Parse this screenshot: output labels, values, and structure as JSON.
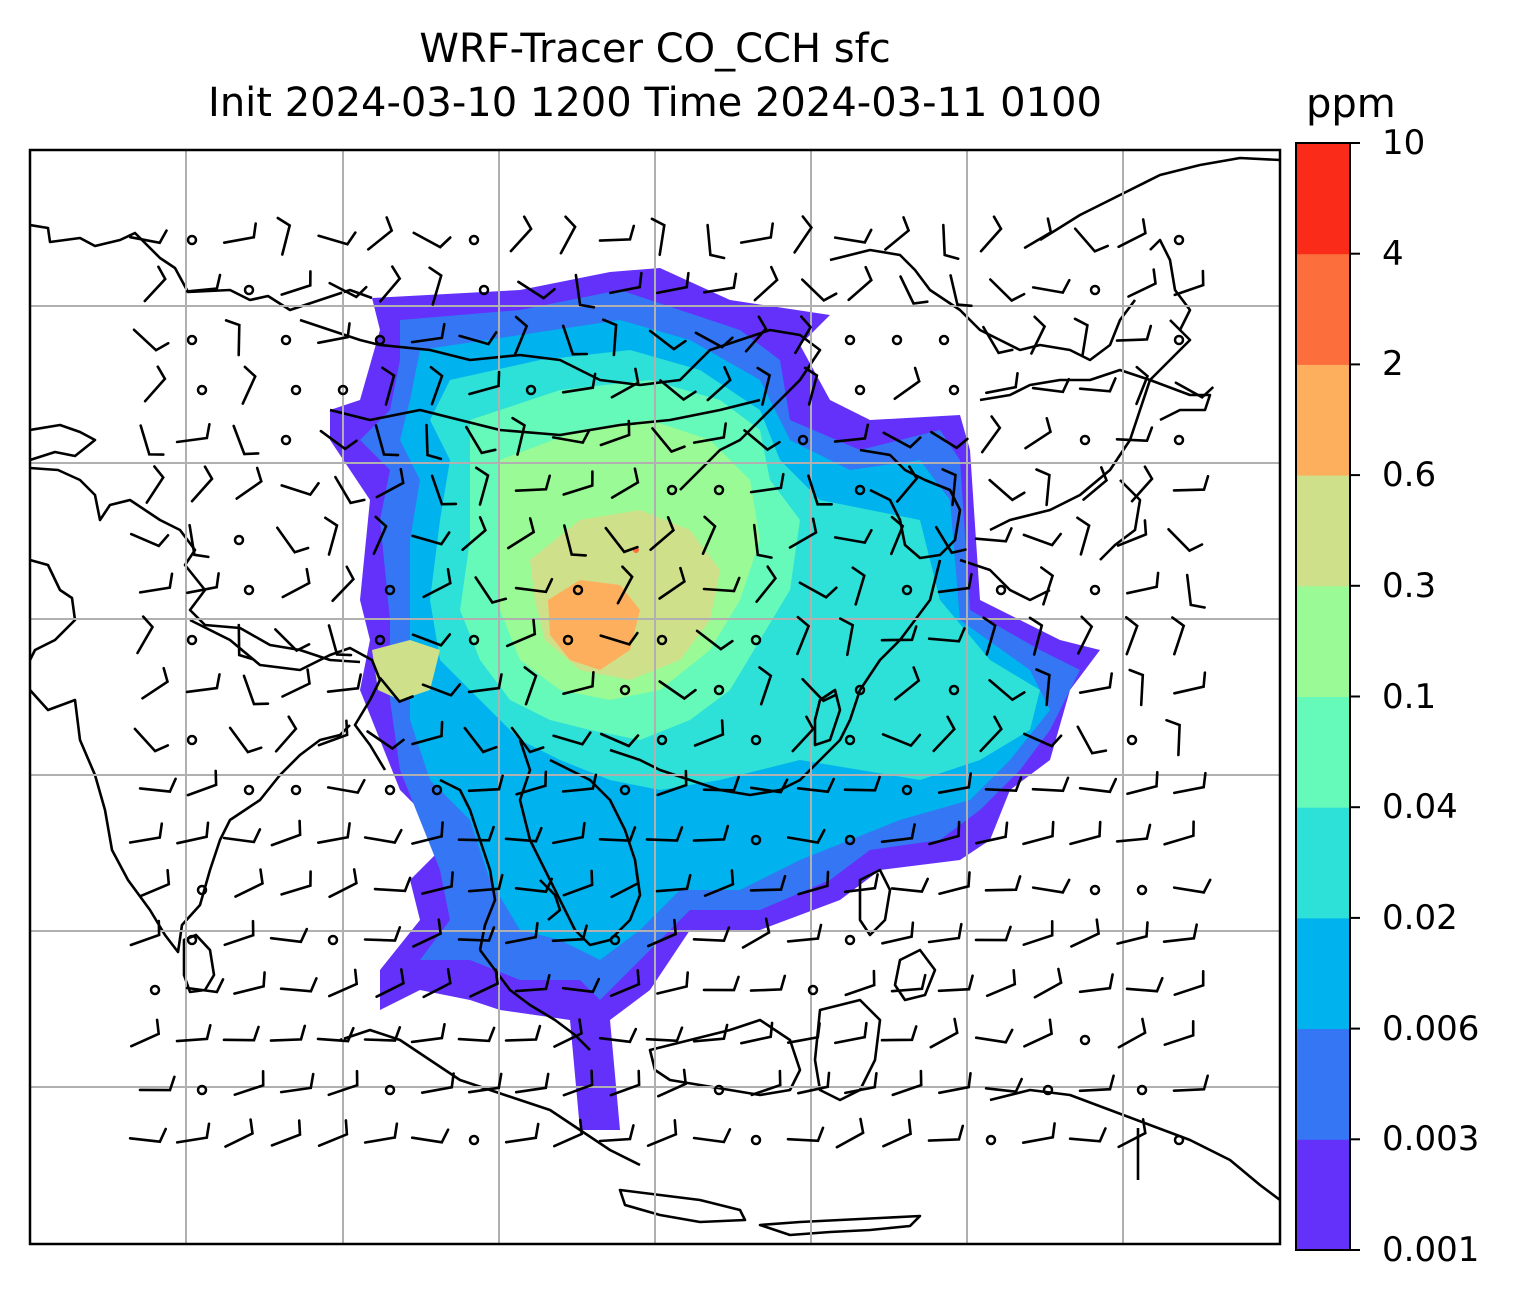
{
  "map": {
    "title_line1": "WRF-Tracer CO_CCH sfc",
    "title_line2": "Init 2024-03-10 1200 Time 2024-03-11 0100",
    "background_color": "#ffffff",
    "coastline_color": "#000000",
    "gridline_color": "#b0b0b0",
    "wind_barb_color": "#000000"
  },
  "colorbar": {
    "unit": "ppm",
    "levels": [
      "0.001",
      "0.003",
      "0.006",
      "0.02",
      "0.04",
      "0.1",
      "0.3",
      "0.6",
      "2",
      "4",
      "10"
    ],
    "colors": [
      "#6431fa",
      "#3476f4",
      "#00b2ed",
      "#2de0d8",
      "#65f9ba",
      "#9afa96",
      "#cfe08a",
      "#fdaf5e",
      "#fd6e3d",
      "#fb2b19"
    ]
  }
}
